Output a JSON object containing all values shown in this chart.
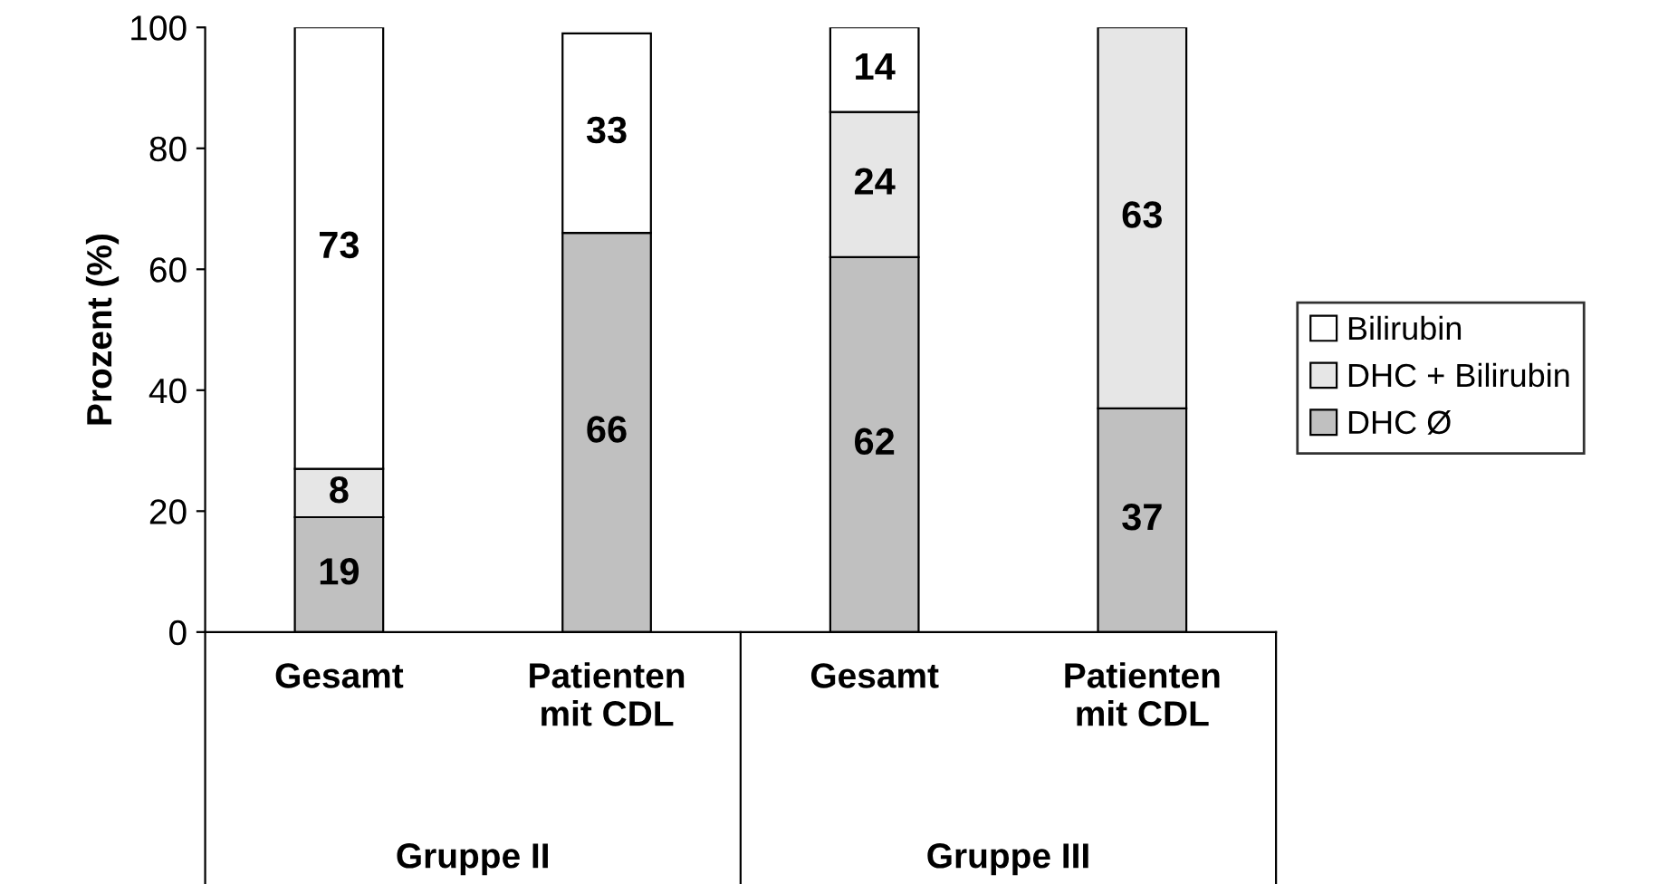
{
  "chart_data": {
    "type": "bar",
    "stacked": true,
    "ylabel": "Prozent (%)",
    "categories": [
      "Gesamt",
      "Patienten\nmit CDL",
      "Gesamt",
      "Patienten\nmit CDL"
    ],
    "series": [
      {
        "name": "DHC Ø",
        "color": "#c0c0c0",
        "values": [
          19,
          66,
          62,
          37
        ],
        "value_labels": [
          "19",
          "66",
          "62",
          "37"
        ]
      },
      {
        "name": "DHC + Bilirubin",
        "color": "#e6e6e6",
        "values": [
          8,
          null,
          24,
          63
        ],
        "value_labels": [
          "8",
          null,
          "24",
          "63"
        ]
      },
      {
        "name": "Bilirubin",
        "color": "#ffffff",
        "values": [
          73,
          33,
          14,
          null
        ],
        "value_labels": [
          "73",
          "33",
          "14",
          null
        ]
      }
    ],
    "ylim": [
      0,
      100
    ],
    "yticks": [
      0,
      20,
      40,
      60,
      80,
      100
    ],
    "grid": false,
    "legend": "right",
    "annotations": [
      "Gruppe II",
      "Gruppe III"
    ]
  }
}
